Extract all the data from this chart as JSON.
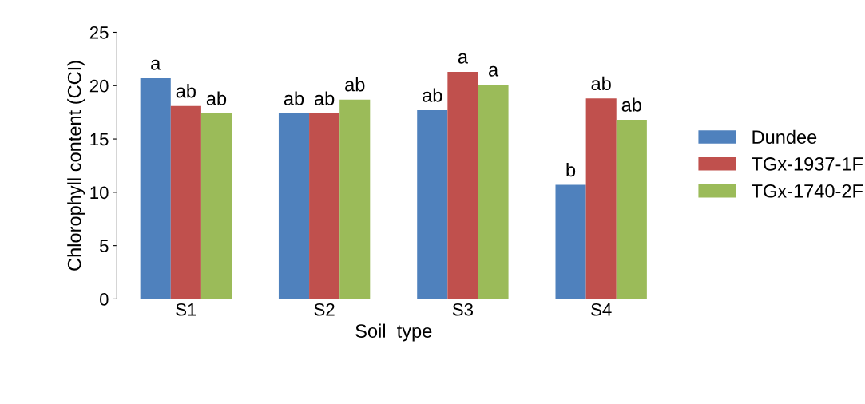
{
  "chart_data": {
    "type": "bar",
    "xlabel": "Soil  type",
    "ylabel": "Chlorophyll content (CCI)",
    "categories": [
      "S1",
      "S2",
      "S3",
      "S4"
    ],
    "series": [
      {
        "name": "Dundee",
        "color": "#4f81bd",
        "values": [
          20.7,
          17.4,
          17.7,
          10.7
        ],
        "value_labels": [
          "a",
          "ab",
          "ab",
          "b"
        ]
      },
      {
        "name": "TGx-1937-1F",
        "color": "#c0504d",
        "values": [
          18.1,
          17.4,
          21.3,
          18.8
        ],
        "value_labels": [
          "ab",
          "ab",
          "a",
          "ab"
        ]
      },
      {
        "name": "TGx-1740-2F",
        "color": "#9bbb59",
        "values": [
          17.4,
          18.7,
          20.1,
          16.8
        ],
        "value_labels": [
          "ab",
          "ab",
          "a",
          "ab"
        ]
      }
    ],
    "ylim": [
      0,
      25
    ],
    "yticks": [
      0,
      5,
      10,
      15,
      20,
      25
    ],
    "grid": false,
    "legend": "right"
  }
}
